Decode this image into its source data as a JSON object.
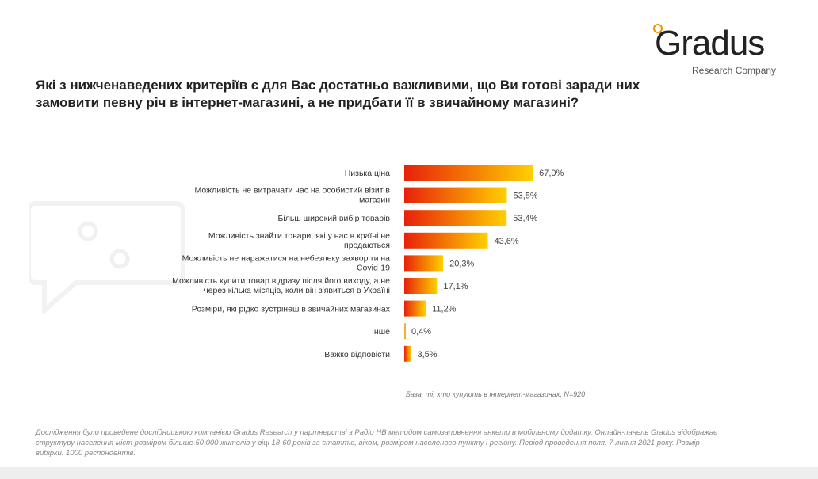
{
  "logo": {
    "name": "Gradus",
    "subtitle": "Research Company",
    "accent": "#f39200"
  },
  "title": "Які з нижченаведених критеріїв є для Вас достатньо важливими, що Ви готові заради них замовити певну річ в інтернет-магазині, а не придбати її в звичайному магазині?",
  "chart_data": {
    "type": "bar",
    "orientation": "horizontal",
    "categories": [
      [
        "Низька ціна"
      ],
      [
        "Можливість не витрачати час на особистий візит в",
        "магазин"
      ],
      [
        "Більш широкий вибір товарів"
      ],
      [
        "Можливість знайти товари, які у нас в країні не",
        "продаються"
      ],
      [
        "Можливість не наражатися на небезпеку захворіти на",
        "Covid-19"
      ],
      [
        "Можливість купити товар відразу після його виходу, а не",
        "через кілька місяців, коли він з'явиться в Україні"
      ],
      [
        "Розміри, які рідко зустрінеш в звичайних магазинах"
      ],
      [
        "Інше"
      ],
      [
        "Важко відповісти"
      ]
    ],
    "values": [
      67.0,
      53.5,
      53.4,
      43.6,
      20.3,
      17.1,
      11.2,
      0.4,
      3.5
    ],
    "value_labels": [
      "67,0%",
      "53,5%",
      "53,4%",
      "43,6%",
      "20,3%",
      "17,1%",
      "11,2%",
      "0,4%",
      "3,5%"
    ],
    "unit": "%",
    "xlim": [
      0,
      100
    ],
    "grid": false,
    "colors": {
      "gradient_start": "#e8200a",
      "gradient_end": "#ffd000"
    }
  },
  "base_note": "База: ті, хто купують в інтернет-магазинах, N=920",
  "footnote": "Дослідження було проведене дослідницькою компанією Gradus Research у партнерстві з Радіо НВ методом самозаповнення анкети в мобільному додатку. Онлайн-панель Gradus відображає структуру населення міст розміром більше 50 000 жителів у віці 18-60 років за статтю, віком, розміром населеного пункту і регіону. Період проведення поля: 7 липня 2021 року. Розмір вибірки: 1000 респондентів."
}
